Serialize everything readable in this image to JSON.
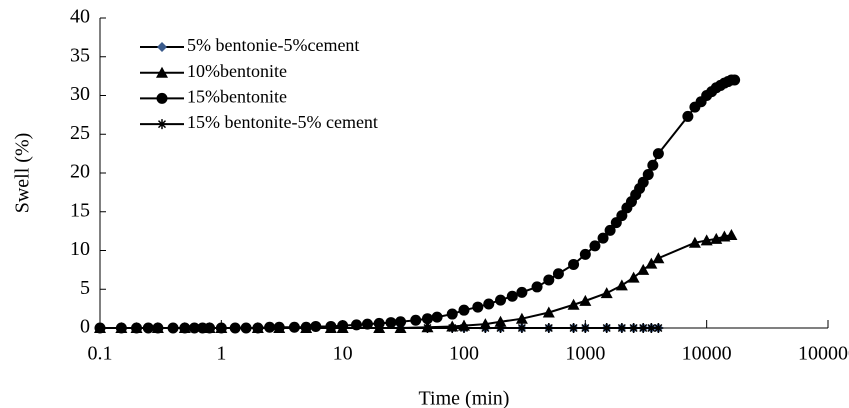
{
  "chart_data": {
    "type": "line",
    "xlabel": "Time (min)",
    "ylabel": "Swell (%)",
    "xscale": "log",
    "xlim": [
      0.1,
      100000
    ],
    "xticks": [
      0.1,
      1,
      10,
      100,
      1000,
      10000,
      100000
    ],
    "ylim": [
      0,
      40
    ],
    "yticks": [
      0,
      5,
      10,
      15,
      20,
      25,
      30,
      35,
      40
    ],
    "grid": false,
    "legend": "upper left",
    "series": [
      {
        "name": "5% bentonie-5%cement",
        "color": "#3b5b8c",
        "marker": "diamond",
        "x": [
          0.1,
          0.15,
          0.2,
          0.3,
          0.5,
          0.8,
          1,
          2,
          3,
          5,
          8,
          10,
          20,
          30,
          50,
          80,
          100,
          150,
          200,
          300,
          500,
          800,
          1000,
          1500,
          2000,
          2500,
          3000,
          3500,
          4000
        ],
        "values": [
          0,
          0,
          0,
          0,
          0,
          0,
          0,
          0,
          0,
          0,
          0,
          0,
          0,
          0,
          0,
          0,
          0,
          0,
          0,
          0,
          0,
          0,
          0,
          0,
          0,
          0,
          0,
          0,
          0
        ]
      },
      {
        "name": "10%bentonite",
        "color": "#000000",
        "marker": "triangle",
        "x": [
          0.1,
          0.15,
          0.2,
          0.3,
          0.5,
          0.8,
          1,
          2,
          3,
          5,
          8,
          10,
          20,
          30,
          50,
          80,
          100,
          150,
          200,
          300,
          500,
          800,
          1000,
          1500,
          2000,
          2500,
          3000,
          3500,
          4000,
          8000,
          10000,
          12000,
          14000,
          16000
        ],
        "values": [
          0,
          0,
          0,
          0,
          0,
          0,
          0,
          0,
          0,
          0,
          0,
          0,
          0,
          0,
          0.1,
          0.2,
          0.3,
          0.5,
          0.8,
          1.2,
          2,
          3,
          3.5,
          4.5,
          5.5,
          6.5,
          7.5,
          8.3,
          9,
          11,
          11.3,
          11.5,
          11.8,
          12
        ]
      },
      {
        "name": "15%bentonite",
        "color": "#000000",
        "marker": "circle",
        "x": [
          0.1,
          0.15,
          0.2,
          0.25,
          0.3,
          0.4,
          0.5,
          0.6,
          0.7,
          0.8,
          1,
          1.3,
          1.6,
          2,
          2.5,
          3,
          4,
          5,
          6,
          8,
          10,
          13,
          16,
          20,
          25,
          30,
          40,
          50,
          60,
          80,
          100,
          130,
          160,
          200,
          250,
          300,
          400,
          500,
          600,
          800,
          1000,
          1200,
          1400,
          1600,
          1800,
          2000,
          2200,
          2400,
          2600,
          2800,
          3000,
          3300,
          3600,
          4000,
          7000,
          8000,
          9000,
          10000,
          11000,
          12000,
          13000,
          14000,
          15000,
          16000,
          17000
        ],
        "values": [
          0,
          0,
          0,
          0,
          0,
          0,
          0,
          0,
          0,
          0,
          0,
          0,
          0,
          0,
          0.1,
          0.1,
          0.1,
          0.1,
          0.2,
          0.2,
          0.3,
          0.4,
          0.5,
          0.6,
          0.7,
          0.8,
          1,
          1.2,
          1.4,
          1.8,
          2.3,
          2.7,
          3.1,
          3.6,
          4.1,
          4.6,
          5.3,
          6.2,
          7,
          8.2,
          9.5,
          10.6,
          11.6,
          12.6,
          13.6,
          14.5,
          15.5,
          16.3,
          17.2,
          18,
          18.8,
          19.8,
          21,
          22.5,
          27.3,
          28.5,
          29.2,
          30,
          30.5,
          31,
          31.3,
          31.6,
          31.8,
          32,
          32
        ]
      },
      {
        "name": "15% bentonite-5% cement",
        "color": "#000000",
        "marker": "star",
        "x": [
          0.1,
          0.15,
          0.2,
          0.3,
          0.5,
          0.8,
          1,
          2,
          3,
          5,
          8,
          10,
          20,
          30,
          50,
          80,
          100,
          150,
          200,
          300,
          500,
          800,
          1000,
          1500,
          2000,
          2500,
          3000,
          3500,
          4000
        ],
        "values": [
          0,
          0,
          0,
          0,
          0,
          0,
          0,
          0,
          0,
          0,
          0,
          0,
          0,
          0,
          0,
          0,
          0,
          0,
          0,
          0,
          0,
          0,
          0,
          0,
          0,
          0,
          0,
          0,
          0
        ]
      }
    ]
  }
}
